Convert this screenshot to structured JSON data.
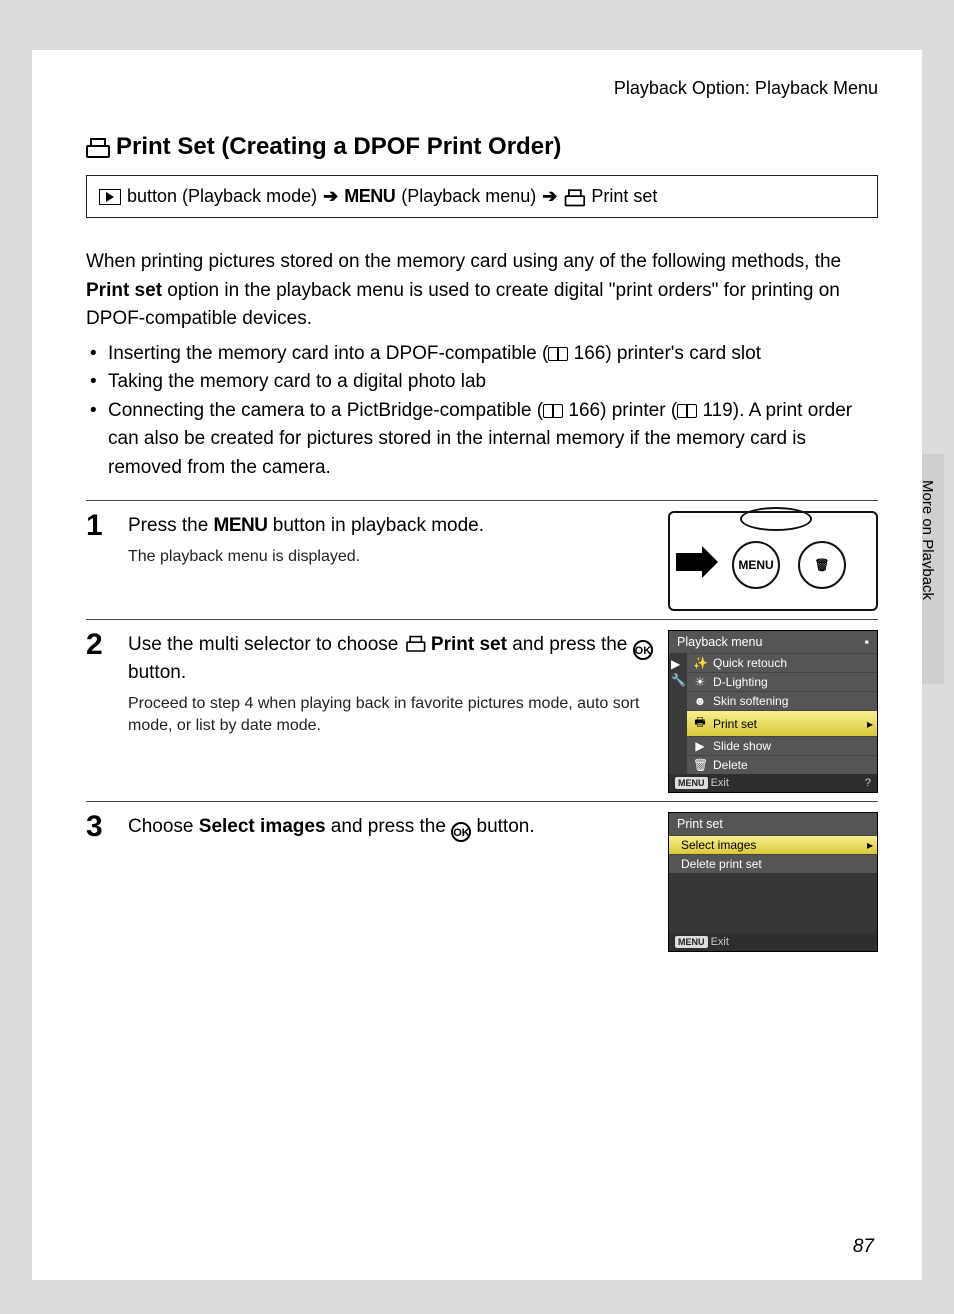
{
  "header": {
    "breadcrumb": "Playback Option: Playback Menu"
  },
  "title": "Print Set (Creating a DPOF Print Order)",
  "navpath": {
    "part1": "button (Playback mode)",
    "menu_label": "MENU",
    "part2": "(Playback menu)",
    "part3": "Print set"
  },
  "intro": {
    "p1a": "When printing pictures stored on the memory card using any of the following methods, the ",
    "p1b": "Print set",
    "p1c": " option in the playback menu is used to create digital \"print orders\" for printing on DPOF-compatible devices."
  },
  "bullets": {
    "b1a": "Inserting the memory card into a DPOF-compatible (",
    "b1_ref": "166",
    "b1b": ") printer's card slot",
    "b2": "Taking the memory card to a digital photo lab",
    "b3a": "Connecting the camera to a PictBridge-compatible (",
    "b3_ref1": "166",
    "b3b": ") printer (",
    "b3_ref2": "119",
    "b3c": "). A print order can also be created for pictures stored in the internal memory if the memory card is removed from the camera."
  },
  "steps": {
    "s1": {
      "num": "1",
      "head_a": "Press the ",
      "head_menu": "MENU",
      "head_b": " button in playback mode.",
      "sub": "The playback menu is displayed.",
      "btn_menu": "MENU",
      "btn_trash": "🗑"
    },
    "s2": {
      "num": "2",
      "head_a": "Use the multi selector to choose ",
      "head_bold": "Print set",
      "head_b": " and press the ",
      "head_ok": "OK",
      "head_c": " button.",
      "sub": "Proceed to step 4 when playing back in favorite pictures mode, auto sort mode, or list by date mode.",
      "lcd_title": "Playback menu",
      "items": [
        "Quick retouch",
        "D-Lighting",
        "Skin softening",
        "Print set",
        "Slide show",
        "Delete"
      ],
      "selected_index": 3,
      "lcd_exit": "Exit"
    },
    "s3": {
      "num": "3",
      "head_a": "Choose ",
      "head_bold": "Select images",
      "head_b": " and press the ",
      "head_ok": "OK",
      "head_c": " button.",
      "lcd_title": "Print set",
      "items": [
        "Select images",
        "Delete print set"
      ],
      "selected_index": 0,
      "lcd_exit": "Exit"
    }
  },
  "sidetag": "More on Playback",
  "pagenum": "87",
  "colors": {
    "page_bg": "#dcdcdc",
    "lcd_bg": "#363636",
    "lcd_sel_top": "#f8f090",
    "lcd_sel_bot": "#d8c838"
  }
}
